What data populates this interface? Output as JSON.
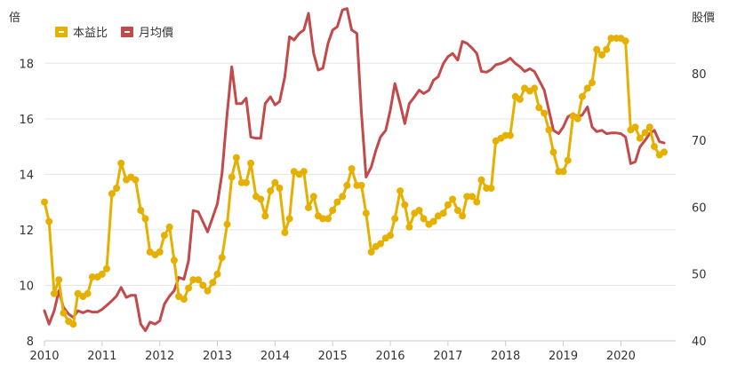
{
  "chart_data": {
    "type": "line",
    "y_left_label": "倍",
    "y_right_label": "股價",
    "x_ticks": [
      "2010",
      "2011",
      "2012",
      "2013",
      "2014",
      "2015",
      "2016",
      "2017",
      "2018",
      "2019",
      "2020"
    ],
    "y_left_ticks": [
      "8",
      "10",
      "12",
      "14",
      "16",
      "18"
    ],
    "y_right_ticks": [
      "40",
      "50",
      "60",
      "70",
      "80"
    ],
    "xlim": [
      2010.0,
      2020.95
    ],
    "ylim_left": [
      8,
      19.8
    ],
    "ylim_right": [
      40,
      89
    ],
    "grid": "horizontal",
    "legend_position": "top-left",
    "series": [
      {
        "name": "本益比",
        "axis": "left",
        "color": "#e6b000",
        "markers": true,
        "points": [
          [
            2010.0,
            13.0
          ],
          [
            2010.08,
            12.3
          ],
          [
            2010.17,
            9.7
          ],
          [
            2010.25,
            10.2
          ],
          [
            2010.33,
            9.0
          ],
          [
            2010.42,
            8.7
          ],
          [
            2010.5,
            8.6
          ],
          [
            2010.58,
            9.7
          ],
          [
            2010.67,
            9.6
          ],
          [
            2010.75,
            9.7
          ],
          [
            2010.83,
            10.3
          ],
          [
            2010.92,
            10.3
          ],
          [
            2011.0,
            10.4
          ],
          [
            2011.08,
            10.6
          ],
          [
            2011.17,
            13.3
          ],
          [
            2011.25,
            13.5
          ],
          [
            2011.33,
            14.4
          ],
          [
            2011.42,
            13.8
          ],
          [
            2011.5,
            13.9
          ],
          [
            2011.58,
            13.8
          ],
          [
            2011.67,
            12.7
          ],
          [
            2011.75,
            12.4
          ],
          [
            2011.83,
            11.2
          ],
          [
            2011.92,
            11.1
          ],
          [
            2012.0,
            11.2
          ],
          [
            2012.08,
            11.8
          ],
          [
            2012.17,
            12.1
          ],
          [
            2012.25,
            10.9
          ],
          [
            2012.33,
            9.6
          ],
          [
            2012.42,
            9.5
          ],
          [
            2012.5,
            9.9
          ],
          [
            2012.58,
            10.2
          ],
          [
            2012.67,
            10.2
          ],
          [
            2012.75,
            10.0
          ],
          [
            2012.83,
            9.8
          ],
          [
            2012.92,
            10.1
          ],
          [
            2013.0,
            10.4
          ],
          [
            2013.08,
            11.0
          ],
          [
            2013.17,
            12.2
          ],
          [
            2013.25,
            13.9
          ],
          [
            2013.33,
            14.6
          ],
          [
            2013.42,
            13.7
          ],
          [
            2013.5,
            13.7
          ],
          [
            2013.58,
            14.4
          ],
          [
            2013.67,
            13.2
          ],
          [
            2013.75,
            13.1
          ],
          [
            2013.83,
            12.5
          ],
          [
            2013.92,
            13.4
          ],
          [
            2014.0,
            13.7
          ],
          [
            2014.08,
            13.5
          ],
          [
            2014.17,
            11.9
          ],
          [
            2014.25,
            12.4
          ],
          [
            2014.33,
            14.1
          ],
          [
            2014.42,
            14.0
          ],
          [
            2014.5,
            14.1
          ],
          [
            2014.58,
            12.8
          ],
          [
            2014.67,
            13.2
          ],
          [
            2014.75,
            12.5
          ],
          [
            2014.83,
            12.4
          ],
          [
            2014.92,
            12.4
          ],
          [
            2015.0,
            12.7
          ],
          [
            2015.08,
            13.0
          ],
          [
            2015.17,
            13.2
          ],
          [
            2015.25,
            13.6
          ],
          [
            2015.33,
            14.2
          ],
          [
            2015.42,
            13.6
          ],
          [
            2015.5,
            13.6
          ],
          [
            2015.58,
            12.6
          ],
          [
            2015.67,
            11.2
          ],
          [
            2015.75,
            11.4
          ],
          [
            2015.83,
            11.5
          ],
          [
            2015.92,
            11.7
          ],
          [
            2016.0,
            11.8
          ],
          [
            2016.08,
            12.4
          ],
          [
            2016.17,
            13.4
          ],
          [
            2016.25,
            12.9
          ],
          [
            2016.33,
            12.1
          ],
          [
            2016.42,
            12.6
          ],
          [
            2016.5,
            12.7
          ],
          [
            2016.58,
            12.4
          ],
          [
            2016.67,
            12.2
          ],
          [
            2016.75,
            12.3
          ],
          [
            2016.83,
            12.5
          ],
          [
            2016.92,
            12.6
          ],
          [
            2017.0,
            12.9
          ],
          [
            2017.08,
            13.1
          ],
          [
            2017.17,
            12.7
          ],
          [
            2017.25,
            12.5
          ],
          [
            2017.33,
            13.2
          ],
          [
            2017.42,
            13.2
          ],
          [
            2017.5,
            13.0
          ],
          [
            2017.58,
            13.8
          ],
          [
            2017.67,
            13.5
          ],
          [
            2017.75,
            13.5
          ],
          [
            2017.83,
            15.2
          ],
          [
            2017.92,
            15.3
          ],
          [
            2018.0,
            15.4
          ],
          [
            2018.08,
            15.4
          ],
          [
            2018.17,
            16.8
          ],
          [
            2018.25,
            16.7
          ],
          [
            2018.33,
            17.1
          ],
          [
            2018.42,
            17.0
          ],
          [
            2018.5,
            17.1
          ],
          [
            2018.58,
            16.4
          ],
          [
            2018.67,
            16.2
          ],
          [
            2018.75,
            15.6
          ],
          [
            2018.83,
            14.8
          ],
          [
            2018.92,
            14.1
          ],
          [
            2019.0,
            14.1
          ],
          [
            2019.08,
            14.5
          ],
          [
            2019.17,
            16.1
          ],
          [
            2019.25,
            16.0
          ],
          [
            2019.33,
            16.8
          ],
          [
            2019.42,
            17.1
          ],
          [
            2019.5,
            17.3
          ],
          [
            2019.58,
            18.5
          ],
          [
            2019.67,
            18.3
          ],
          [
            2019.75,
            18.5
          ],
          [
            2019.83,
            18.9
          ],
          [
            2019.92,
            18.9
          ],
          [
            2020.0,
            18.9
          ],
          [
            2020.08,
            18.8
          ],
          [
            2020.17,
            15.6
          ],
          [
            2020.25,
            15.7
          ],
          [
            2020.33,
            15.3
          ],
          [
            2020.42,
            15.5
          ],
          [
            2020.5,
            15.7
          ],
          [
            2020.58,
            15.0
          ],
          [
            2020.67,
            14.7
          ],
          [
            2020.75,
            14.8
          ]
        ]
      },
      {
        "name": "月均價",
        "axis": "right",
        "color": "#c24a4a",
        "markers": false,
        "points": [
          [
            2010.0,
            44.5
          ],
          [
            2010.08,
            42.5
          ],
          [
            2010.17,
            44.5
          ],
          [
            2010.25,
            47.5
          ],
          [
            2010.33,
            45.0
          ],
          [
            2010.42,
            44.0
          ],
          [
            2010.5,
            43.5
          ],
          [
            2010.58,
            44.5
          ],
          [
            2010.67,
            44.2
          ],
          [
            2010.75,
            44.5
          ],
          [
            2010.83,
            44.3
          ],
          [
            2010.92,
            44.3
          ],
          [
            2011.0,
            44.7
          ],
          [
            2011.08,
            45.3
          ],
          [
            2011.17,
            46.0
          ],
          [
            2011.25,
            46.7
          ],
          [
            2011.33,
            48.0
          ],
          [
            2011.42,
            46.5
          ],
          [
            2011.5,
            46.8
          ],
          [
            2011.58,
            46.8
          ],
          [
            2011.67,
            42.5
          ],
          [
            2011.75,
            41.5
          ],
          [
            2011.83,
            42.8
          ],
          [
            2011.92,
            42.5
          ],
          [
            2012.0,
            43.0
          ],
          [
            2012.08,
            45.5
          ],
          [
            2012.17,
            46.7
          ],
          [
            2012.25,
            47.5
          ],
          [
            2012.33,
            49.5
          ],
          [
            2012.42,
            49.2
          ],
          [
            2012.5,
            52.0
          ],
          [
            2012.58,
            59.5
          ],
          [
            2012.67,
            59.3
          ],
          [
            2012.75,
            57.8
          ],
          [
            2012.83,
            56.3
          ],
          [
            2012.92,
            58.5
          ],
          [
            2013.0,
            60.5
          ],
          [
            2013.08,
            65.0
          ],
          [
            2013.17,
            74.0
          ],
          [
            2013.25,
            81.0
          ],
          [
            2013.33,
            75.5
          ],
          [
            2013.42,
            75.5
          ],
          [
            2013.5,
            76.3
          ],
          [
            2013.58,
            70.5
          ],
          [
            2013.67,
            70.3
          ],
          [
            2013.75,
            70.3
          ],
          [
            2013.83,
            75.5
          ],
          [
            2013.92,
            76.5
          ],
          [
            2014.0,
            75.3
          ],
          [
            2014.08,
            75.8
          ],
          [
            2014.17,
            79.5
          ],
          [
            2014.25,
            85.5
          ],
          [
            2014.33,
            85.0
          ],
          [
            2014.42,
            86.0
          ],
          [
            2014.5,
            86.5
          ],
          [
            2014.58,
            89.0
          ],
          [
            2014.67,
            83.0
          ],
          [
            2014.75,
            80.5
          ],
          [
            2014.83,
            80.8
          ],
          [
            2014.92,
            84.5
          ],
          [
            2015.0,
            86.5
          ],
          [
            2015.08,
            87.0
          ],
          [
            2015.17,
            89.5
          ],
          [
            2015.25,
            89.7
          ],
          [
            2015.33,
            86.5
          ],
          [
            2015.42,
            86.0
          ],
          [
            2015.5,
            74.0
          ],
          [
            2015.58,
            64.5
          ],
          [
            2015.67,
            66.0
          ],
          [
            2015.75,
            68.5
          ],
          [
            2015.83,
            70.5
          ],
          [
            2015.92,
            71.5
          ],
          [
            2016.0,
            74.5
          ],
          [
            2016.08,
            78.5
          ],
          [
            2016.17,
            75.5
          ],
          [
            2016.25,
            72.5
          ],
          [
            2016.33,
            75.5
          ],
          [
            2016.42,
            76.5
          ],
          [
            2016.5,
            77.5
          ],
          [
            2016.58,
            77.0
          ],
          [
            2016.67,
            77.5
          ],
          [
            2016.75,
            79.0
          ],
          [
            2016.83,
            79.5
          ],
          [
            2016.92,
            81.5
          ],
          [
            2017.0,
            82.5
          ],
          [
            2017.08,
            83.0
          ],
          [
            2017.17,
            82.0
          ],
          [
            2017.25,
            84.8
          ],
          [
            2017.33,
            84.5
          ],
          [
            2017.42,
            83.8
          ],
          [
            2017.5,
            83.0
          ],
          [
            2017.58,
            80.3
          ],
          [
            2017.67,
            80.2
          ],
          [
            2017.75,
            80.6
          ],
          [
            2017.83,
            81.3
          ],
          [
            2017.92,
            81.5
          ],
          [
            2018.0,
            81.8
          ],
          [
            2018.08,
            82.3
          ],
          [
            2018.17,
            81.5
          ],
          [
            2018.25,
            81.0
          ],
          [
            2018.33,
            80.3
          ],
          [
            2018.42,
            80.7
          ],
          [
            2018.5,
            80.3
          ],
          [
            2018.58,
            79.0
          ],
          [
            2018.67,
            77.5
          ],
          [
            2018.75,
            74.5
          ],
          [
            2018.83,
            71.5
          ],
          [
            2018.92,
            71.0
          ],
          [
            2019.0,
            72.0
          ],
          [
            2019.08,
            73.5
          ],
          [
            2019.17,
            74.0
          ],
          [
            2019.25,
            73.5
          ],
          [
            2019.33,
            73.8
          ],
          [
            2019.42,
            75.0
          ],
          [
            2019.5,
            72.0
          ],
          [
            2019.58,
            71.3
          ],
          [
            2019.67,
            71.5
          ],
          [
            2019.75,
            71.0
          ],
          [
            2019.83,
            71.1
          ],
          [
            2019.92,
            71.1
          ],
          [
            2020.0,
            71.0
          ],
          [
            2020.08,
            70.5
          ],
          [
            2020.17,
            66.5
          ],
          [
            2020.25,
            66.8
          ],
          [
            2020.33,
            69.0
          ],
          [
            2020.42,
            70.0
          ],
          [
            2020.5,
            71.0
          ],
          [
            2020.58,
            71.5
          ],
          [
            2020.67,
            69.8
          ],
          [
            2020.75,
            69.6
          ]
        ]
      }
    ]
  }
}
